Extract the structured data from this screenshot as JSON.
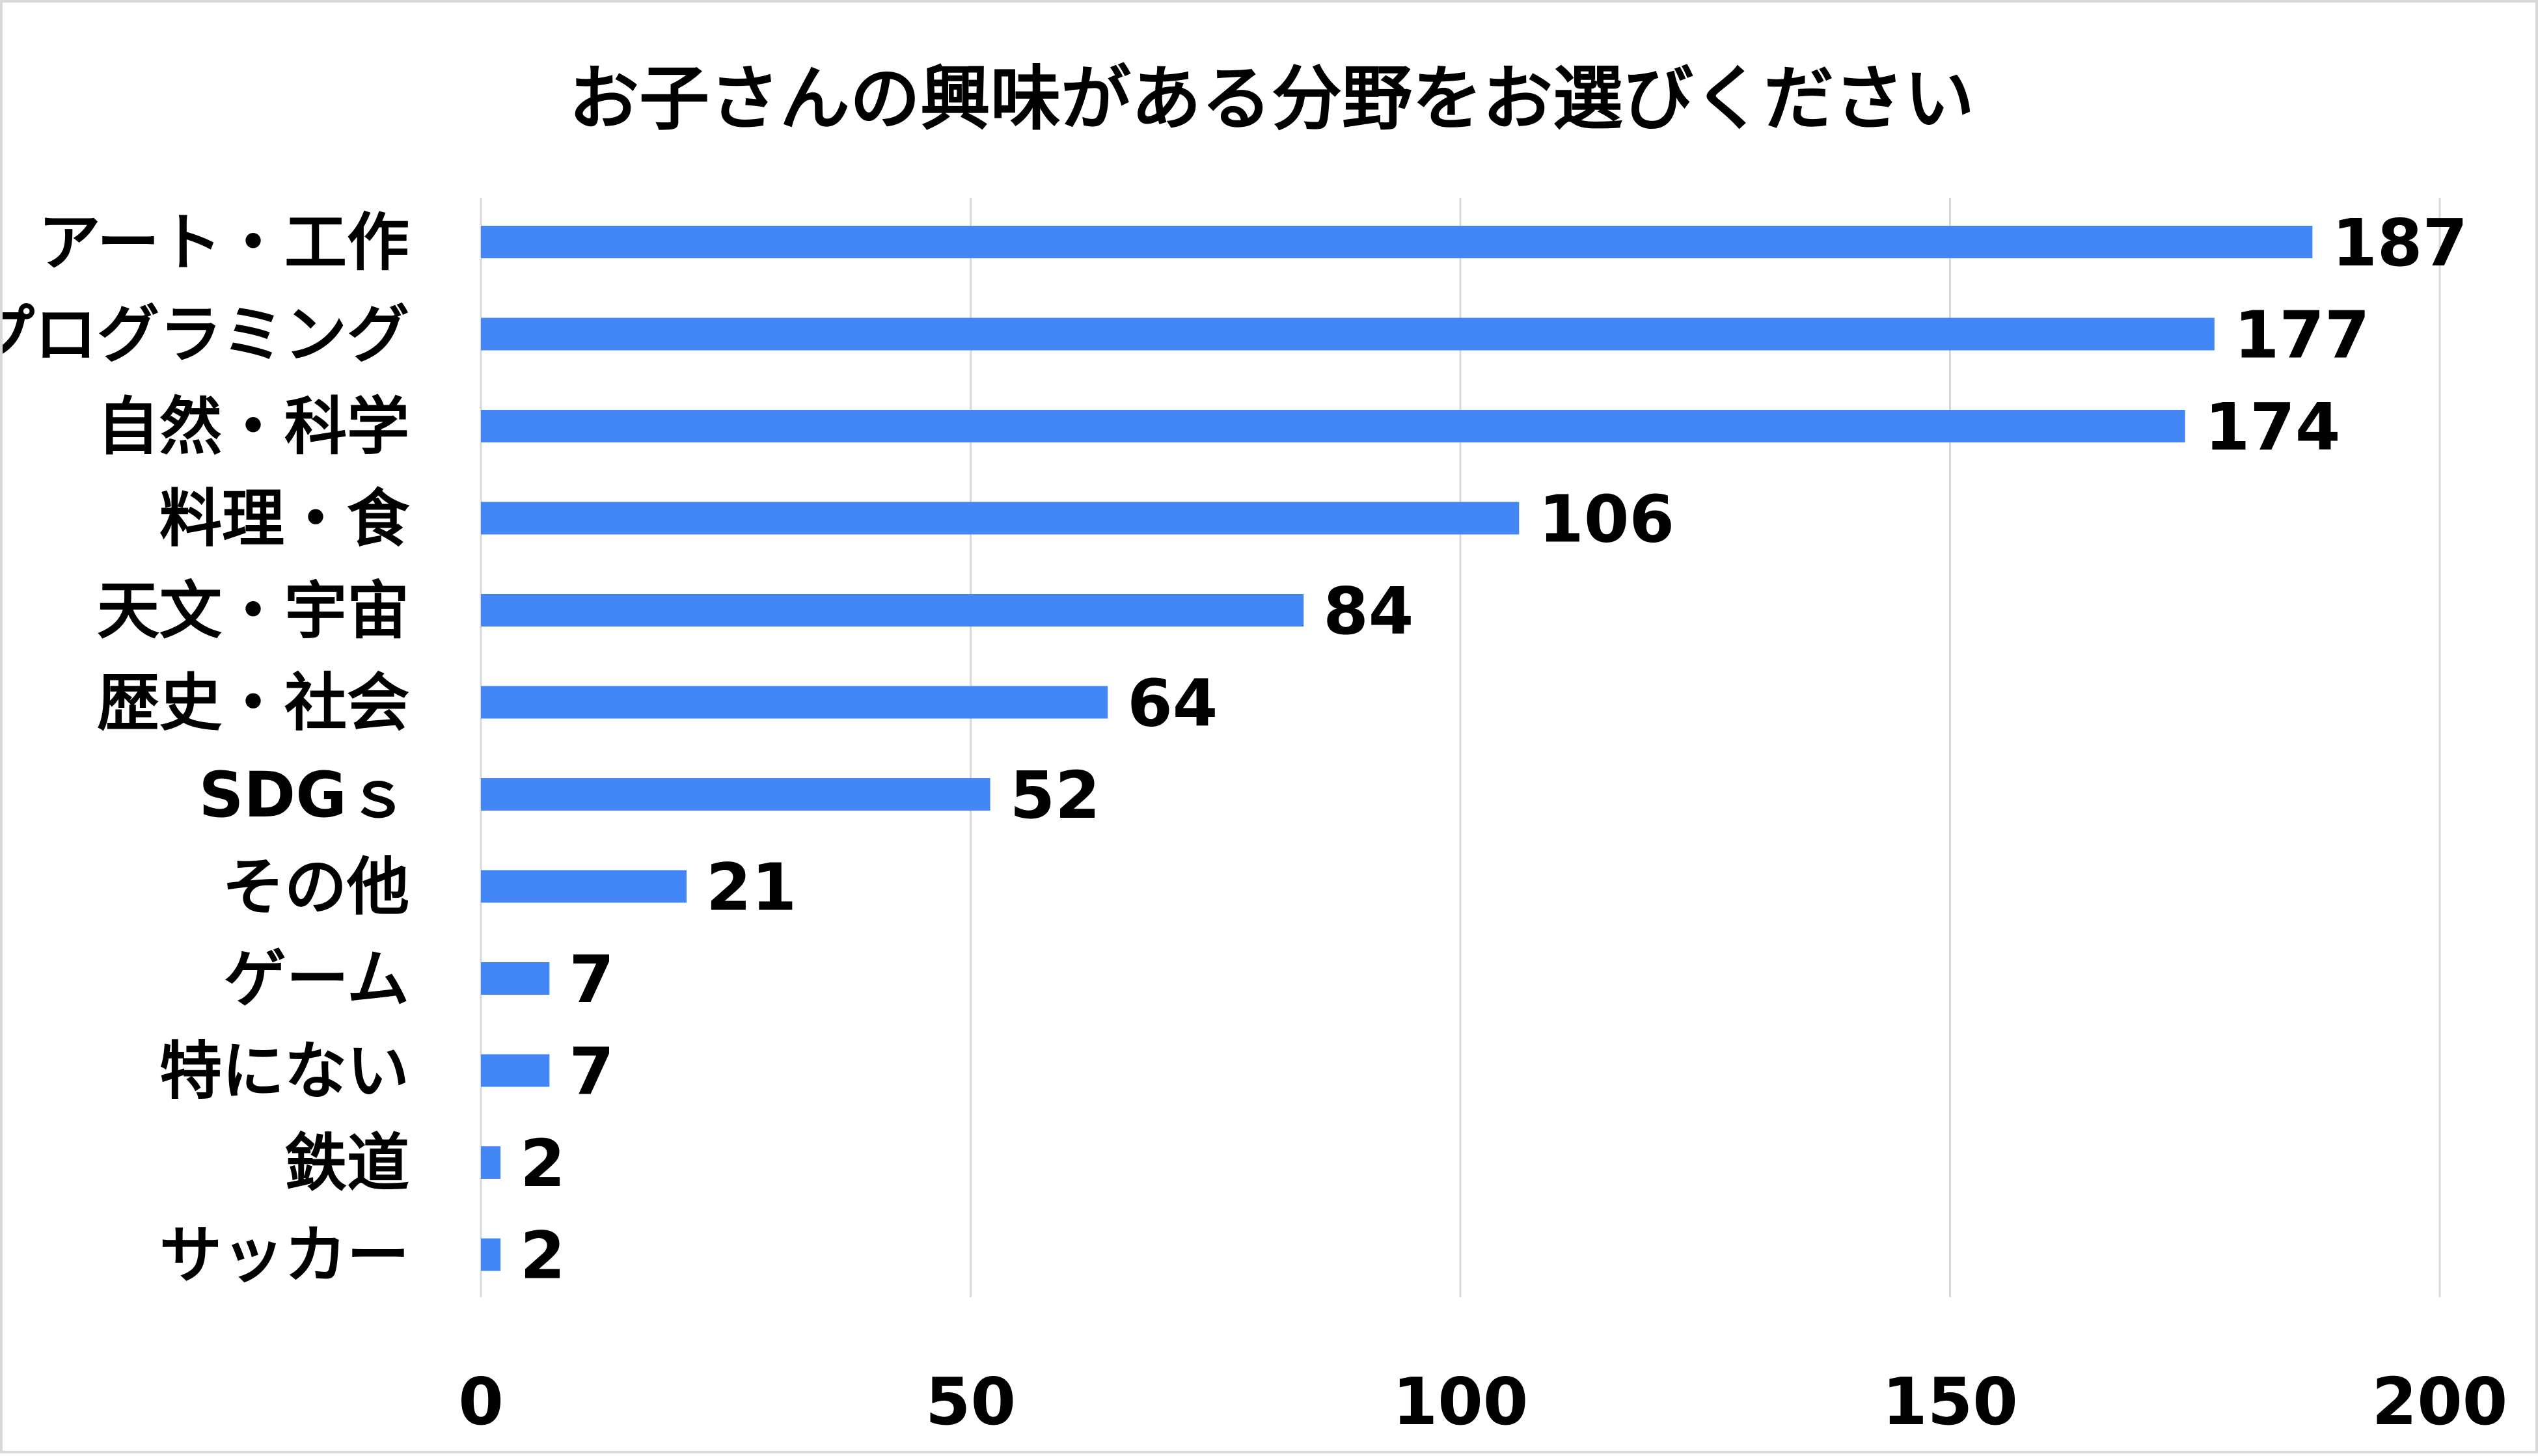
{
  "chart_data": {
    "type": "bar",
    "orientation": "horizontal",
    "title": "お子さんの興味がある分野をお選びください",
    "xlabel": "",
    "ylabel": "",
    "categories": [
      "アート・工作",
      "プログラミング",
      "自然・科学",
      "料理・食",
      "天文・宇宙",
      "歴史・社会",
      "SDGｓ",
      "その他",
      "ゲーム",
      "特にない",
      "鉄道",
      "サッカー"
    ],
    "values": [
      187,
      177,
      174,
      106,
      84,
      64,
      52,
      21,
      7,
      7,
      2,
      2
    ],
    "xlim": [
      0,
      200
    ],
    "xticks": [
      0,
      50,
      100,
      150,
      200
    ],
    "grid": true,
    "legend": "none",
    "colors": {
      "bar": "#4287f5",
      "grid": "#d9d9d9",
      "border": "#d9d9d9"
    }
  }
}
